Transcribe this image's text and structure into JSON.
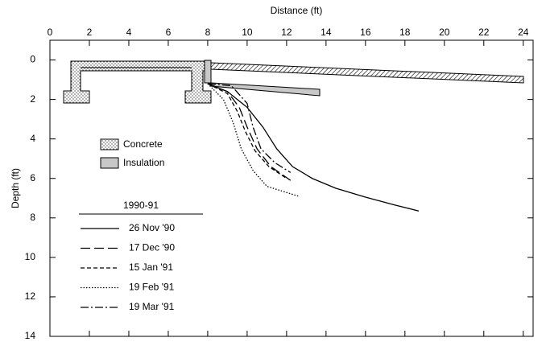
{
  "chart_data": {
    "type": "line",
    "x_label": "Distance (ft)",
    "y_label": "Depth (ft)",
    "xlim": [
      0,
      24.5
    ],
    "ylim": [
      -1,
      14
    ],
    "y_inverted": true,
    "xticks": [
      0,
      2,
      4,
      6,
      8,
      10,
      12,
      14,
      16,
      18,
      20,
      22,
      24
    ],
    "yticks": [
      0,
      2,
      4,
      6,
      8,
      10,
      12,
      14
    ],
    "legend_title": "1990-91",
    "material_legend": [
      "Concrete",
      "Insulation"
    ],
    "series": [
      {
        "name": "26 Nov '90",
        "color": "#000000",
        "dash": "solid",
        "x": [
          8,
          9,
          10,
          10.8,
          11.5,
          12.3,
          13.3,
          14.5,
          16,
          17.5,
          18.7
        ],
        "values": [
          1.2,
          1.6,
          2.4,
          3.4,
          4.5,
          5.4,
          6.0,
          6.5,
          6.95,
          7.35,
          7.65
        ]
      },
      {
        "name": "17 Dec '90",
        "color": "#000000",
        "dash": "long-dash",
        "x": [
          8,
          9,
          9.6,
          10,
          10.5,
          11.2,
          12.2
        ],
        "values": [
          1.2,
          1.6,
          2.4,
          3.4,
          4.5,
          5.4,
          6.1
        ]
      },
      {
        "name": "15 Jan '91",
        "color": "#000000",
        "dash": "short-dash",
        "x": [
          8,
          9,
          9.5,
          9.9,
          10.4,
          11.1,
          12
        ],
        "values": [
          1.2,
          1.7,
          2.6,
          3.6,
          4.6,
          5.4,
          6.0
        ]
      },
      {
        "name": "19 Feb '91",
        "color": "#000000",
        "dash": "dotted",
        "x": [
          8,
          8.8,
          9.3,
          9.7,
          10.3,
          11,
          12.6
        ],
        "values": [
          1.2,
          2.0,
          3.2,
          4.5,
          5.6,
          6.4,
          6.9
        ]
      },
      {
        "name": "19 Mar '91",
        "color": "#000000",
        "dash": "dash-dot",
        "x": [
          8,
          9.2,
          10,
          10.3,
          10.7,
          11.4,
          12.2
        ],
        "values": [
          1.2,
          1.3,
          2.2,
          3.4,
          4.5,
          5.2,
          5.7
        ]
      }
    ]
  }
}
